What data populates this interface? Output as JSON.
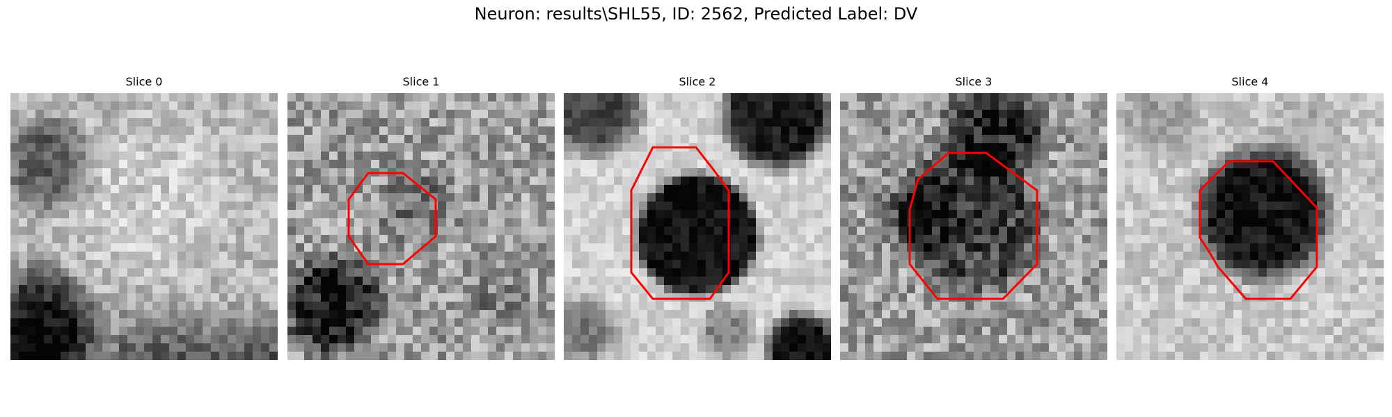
{
  "figure": {
    "title": "Neuron: results\\SHL55, ID: 2562, Predicted Label: DV"
  },
  "panels": [
    {
      "title": "Slice 0",
      "has_roi": false
    },
    {
      "title": "Slice 1",
      "has_roi": true
    },
    {
      "title": "Slice 2",
      "has_roi": true
    },
    {
      "title": "Slice 3",
      "has_roi": true
    },
    {
      "title": "Slice 4",
      "has_roi": true
    }
  ],
  "colors": {
    "roi_outline": "#ff0000",
    "background": "#ffffff"
  }
}
